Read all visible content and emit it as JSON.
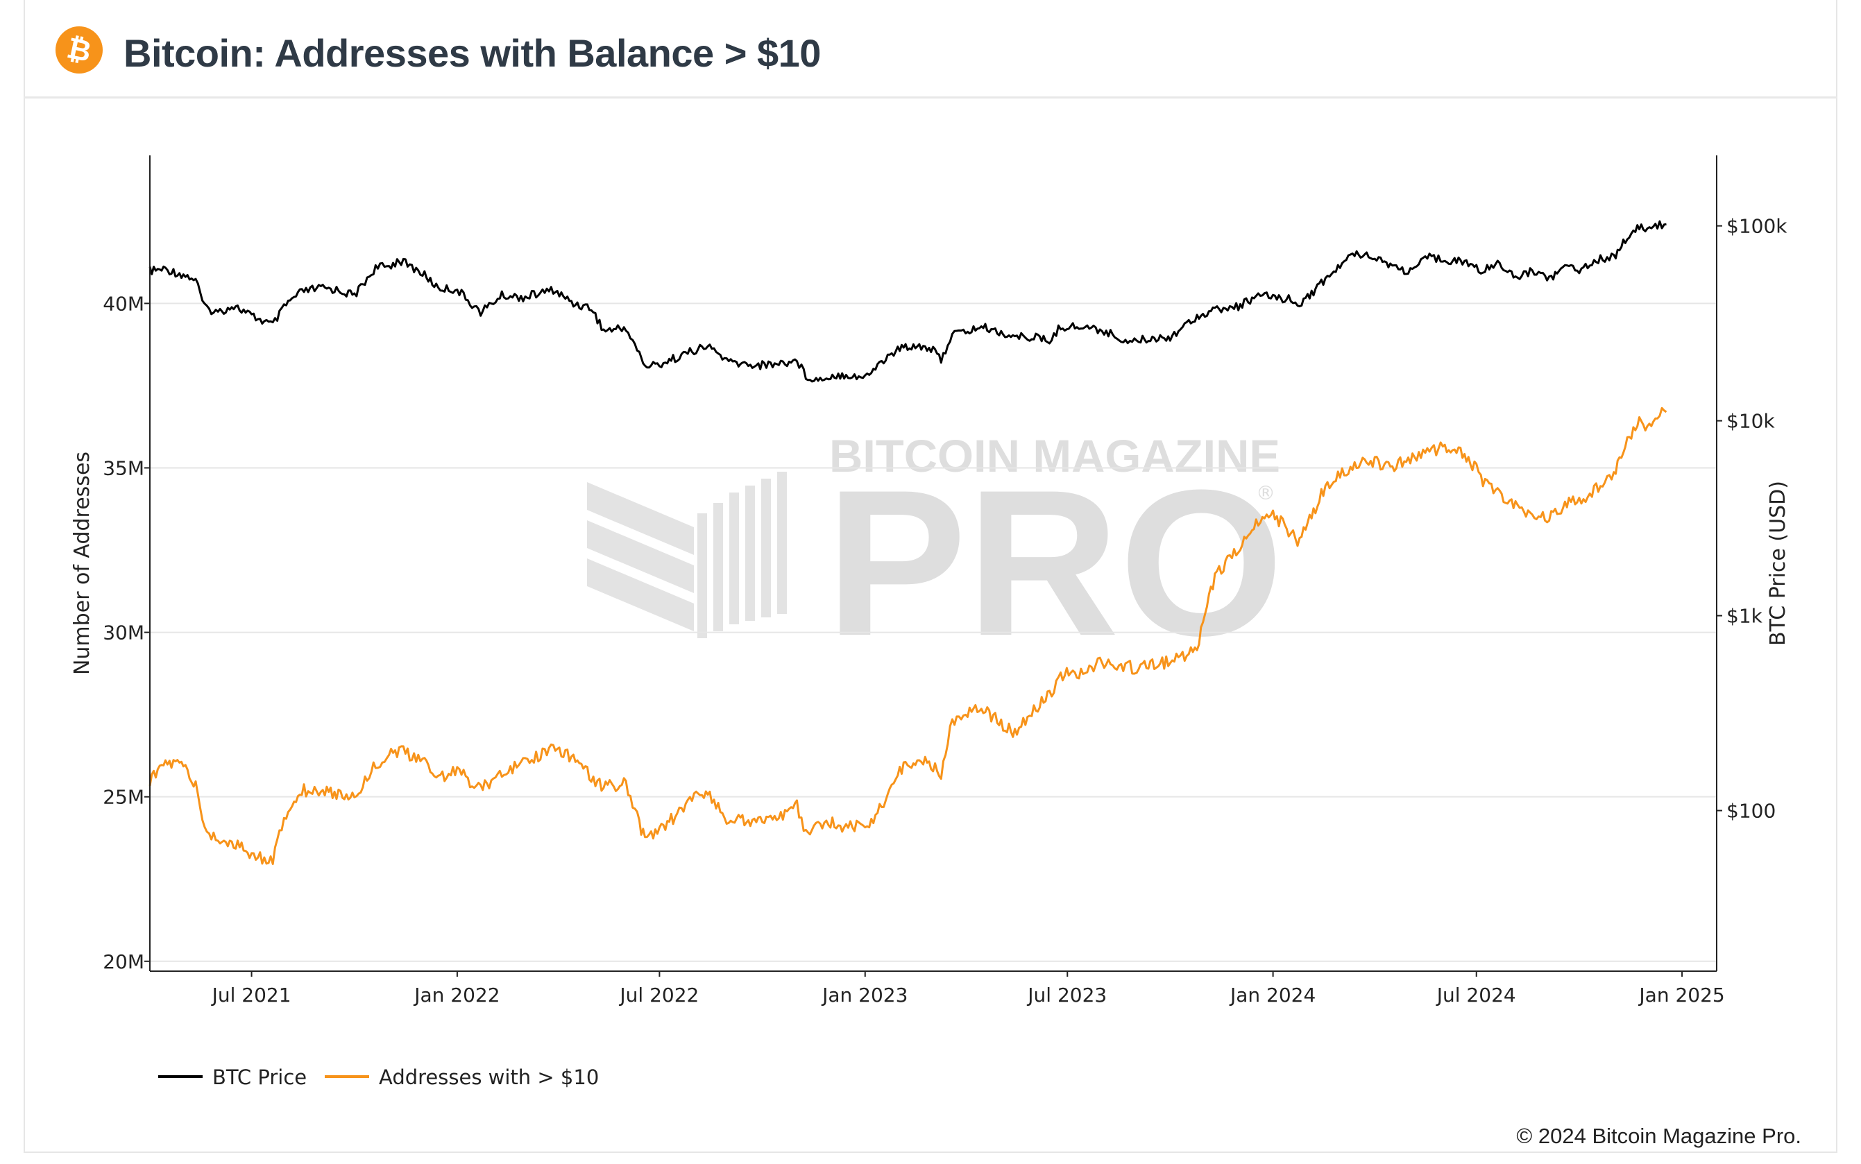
{
  "header": {
    "title": "Bitcoin: Addresses with Balance > $10",
    "logo_icon": "bitcoin-icon"
  },
  "footer": {
    "copyright": "© 2024 Bitcoin Magazine Pro."
  },
  "watermark": {
    "top_text": "BITCOIN MAGAZINE",
    "main_text": "PRO",
    "mark": "®"
  },
  "colors": {
    "btc_price": "#000000",
    "addresses": "#f7931a",
    "grid": "#e6e6e6",
    "watermark": "#dcdcdc",
    "brand": "#f7931a"
  },
  "chart_data": {
    "type": "line",
    "title": "Bitcoin: Addresses with Balance > $10",
    "xlabel": "",
    "ylabel": "Number of Addresses",
    "y2label": "BTC Price (USD)",
    "x_ticks": [
      "Jul 2021",
      "Jan 2022",
      "Jul 2022",
      "Jan 2023",
      "Jul 2023",
      "Jan 2024",
      "Jul 2024",
      "Jan 2025"
    ],
    "x_range": [
      "2021-04-01",
      "2025-02-01"
    ],
    "ylim": [
      19700000,
      44500000
    ],
    "y_ticks": [
      {
        "value": 20000000,
        "label": "20M"
      },
      {
        "value": 25000000,
        "label": "25M"
      },
      {
        "value": 30000000,
        "label": "30M"
      },
      {
        "value": 35000000,
        "label": "35M"
      },
      {
        "value": 40000000,
        "label": "40M"
      }
    ],
    "y2_scale": "log",
    "y2lim": [
      15,
      230000
    ],
    "y2_ticks": [
      {
        "value": 100,
        "label": "$100"
      },
      {
        "value": 1000,
        "label": "$1k"
      },
      {
        "value": 10000,
        "label": "$10k"
      },
      {
        "value": 100000,
        "label": "$100k"
      }
    ],
    "grid": true,
    "legend_position": "bottom-left",
    "series": [
      {
        "name": "BTC Price",
        "axis": "right",
        "color": "#000000",
        "x": [
          "2021-04-01",
          "2021-04-15",
          "2021-05-01",
          "2021-05-12",
          "2021-05-20",
          "2021-06-01",
          "2021-06-15",
          "2021-07-01",
          "2021-07-20",
          "2021-08-01",
          "2021-08-15",
          "2021-09-01",
          "2021-09-15",
          "2021-10-01",
          "2021-10-20",
          "2021-11-01",
          "2021-11-10",
          "2021-12-01",
          "2021-12-15",
          "2022-01-01",
          "2022-01-22",
          "2022-02-10",
          "2022-03-01",
          "2022-03-28",
          "2022-04-15",
          "2022-05-01",
          "2022-05-12",
          "2022-06-01",
          "2022-06-13",
          "2022-06-18",
          "2022-07-01",
          "2022-07-15",
          "2022-08-01",
          "2022-08-15",
          "2022-09-01",
          "2022-09-15",
          "2022-10-01",
          "2022-10-25",
          "2022-11-01",
          "2022-11-09",
          "2022-11-20",
          "2022-12-01",
          "2022-12-15",
          "2023-01-01",
          "2023-01-14",
          "2023-02-01",
          "2023-02-15",
          "2023-03-01",
          "2023-03-10",
          "2023-03-20",
          "2023-04-01",
          "2023-04-15",
          "2023-05-01",
          "2023-05-15",
          "2023-06-01",
          "2023-06-15",
          "2023-06-25",
          "2023-07-15",
          "2023-08-01",
          "2023-08-20",
          "2023-09-01",
          "2023-09-15",
          "2023-10-01",
          "2023-10-25",
          "2023-11-10",
          "2023-12-01",
          "2023-12-15",
          "2024-01-01",
          "2024-01-15",
          "2024-01-23",
          "2024-02-01",
          "2024-02-15",
          "2024-03-01",
          "2024-03-14",
          "2024-04-01",
          "2024-04-15",
          "2024-05-01",
          "2024-05-20",
          "2024-06-01",
          "2024-06-15",
          "2024-07-01",
          "2024-07-05",
          "2024-07-20",
          "2024-08-05",
          "2024-08-20",
          "2024-09-06",
          "2024-09-20",
          "2024-10-01",
          "2024-10-20",
          "2024-11-01",
          "2024-11-06",
          "2024-11-13",
          "2024-11-22",
          "2024-12-01",
          "2024-12-10",
          "2024-12-18"
        ],
        "values": [
          58800,
          60000,
          56000,
          53000,
          38000,
          36000,
          39000,
          34500,
          31000,
          39500,
          46000,
          48000,
          47000,
          44000,
          61000,
          62000,
          67000,
          57000,
          48000,
          47000,
          36000,
          44000,
          43000,
          47000,
          40000,
          38000,
          29000,
          30000,
          22000,
          19000,
          19500,
          21000,
          23000,
          24000,
          20000,
          19500,
          19300,
          20000,
          20500,
          17000,
          16200,
          17000,
          17300,
          16600,
          19800,
          23500,
          24500,
          23500,
          20500,
          28000,
          28500,
          30400,
          28500,
          26900,
          27000,
          25500,
          30500,
          30300,
          29200,
          26000,
          25800,
          26500,
          27000,
          34500,
          37000,
          38500,
          43000,
          43500,
          42000,
          39500,
          43000,
          52000,
          62000,
          73000,
          70000,
          63000,
          58000,
          69000,
          67700,
          66000,
          62000,
          57000,
          66000,
          54000,
          59000,
          54000,
          63000,
          60000,
          68000,
          69500,
          75000,
          88000,
          98000,
          96000,
          101000,
          102000
        ]
      },
      {
        "name": "Addresses with > $10",
        "axis": "left",
        "color": "#f7931a",
        "x": [
          "2021-04-01",
          "2021-04-15",
          "2021-05-01",
          "2021-05-12",
          "2021-05-20",
          "2021-06-01",
          "2021-06-15",
          "2021-07-01",
          "2021-07-20",
          "2021-08-01",
          "2021-08-15",
          "2021-09-01",
          "2021-09-15",
          "2021-10-01",
          "2021-10-20",
          "2021-11-01",
          "2021-11-10",
          "2021-12-01",
          "2021-12-15",
          "2022-01-01",
          "2022-01-22",
          "2022-02-10",
          "2022-03-01",
          "2022-03-28",
          "2022-04-15",
          "2022-05-01",
          "2022-05-12",
          "2022-06-01",
          "2022-06-13",
          "2022-06-18",
          "2022-07-01",
          "2022-07-15",
          "2022-08-01",
          "2022-08-15",
          "2022-09-01",
          "2022-09-15",
          "2022-10-01",
          "2022-10-25",
          "2022-11-01",
          "2022-11-09",
          "2022-11-20",
          "2022-12-01",
          "2022-12-15",
          "2023-01-01",
          "2023-01-14",
          "2023-02-01",
          "2023-02-15",
          "2023-03-01",
          "2023-03-10",
          "2023-03-20",
          "2023-04-01",
          "2023-04-15",
          "2023-05-01",
          "2023-05-15",
          "2023-06-01",
          "2023-06-15",
          "2023-06-25",
          "2023-07-15",
          "2023-08-01",
          "2023-08-20",
          "2023-09-01",
          "2023-09-15",
          "2023-10-01",
          "2023-10-25",
          "2023-11-10",
          "2023-12-01",
          "2023-12-15",
          "2024-01-01",
          "2024-01-15",
          "2024-01-23",
          "2024-02-01",
          "2024-02-15",
          "2024-03-01",
          "2024-03-14",
          "2024-04-01",
          "2024-04-15",
          "2024-05-01",
          "2024-05-20",
          "2024-06-01",
          "2024-06-15",
          "2024-07-01",
          "2024-07-05",
          "2024-07-20",
          "2024-08-05",
          "2024-08-20",
          "2024-09-06",
          "2024-09-20",
          "2024-10-01",
          "2024-10-20",
          "2024-11-01",
          "2024-11-06",
          "2024-11-13",
          "2024-11-22",
          "2024-12-01",
          "2024-12-10",
          "2024-12-18"
        ],
        "values": [
          25500000,
          26000000,
          26000000,
          25300000,
          24000000,
          23700000,
          23600000,
          23200000,
          23100000,
          24500000,
          25200000,
          25200000,
          25100000,
          25000000,
          26000000,
          26300000,
          26400000,
          26100000,
          25600000,
          25800000,
          25200000,
          25800000,
          26000000,
          26500000,
          26200000,
          25600000,
          25300000,
          25400000,
          24200000,
          23700000,
          24000000,
          24400000,
          25000000,
          25100000,
          24200000,
          24300000,
          24300000,
          24500000,
          24700000,
          23900000,
          24100000,
          24200000,
          24100000,
          24100000,
          24600000,
          25800000,
          26100000,
          26000000,
          25700000,
          27300000,
          27600000,
          27700000,
          27300000,
          26900000,
          27600000,
          28100000,
          28700000,
          28800000,
          29100000,
          29000000,
          28900000,
          29000000,
          29100000,
          29500000,
          31700000,
          32500000,
          33200000,
          33600000,
          33100000,
          32800000,
          33300000,
          34300000,
          34800000,
          35100000,
          35200000,
          35000000,
          35300000,
          35500000,
          35600000,
          35500000,
          35000000,
          34600000,
          34200000,
          33800000,
          33600000,
          33500000,
          33900000,
          34000000,
          34500000,
          34900000,
          35200000,
          35800000,
          36400000,
          36300000,
          36600000,
          36700000
        ]
      }
    ]
  },
  "legend": {
    "items": [
      {
        "label": "BTC Price",
        "color": "#000000"
      },
      {
        "label": "Addresses with > $10",
        "color": "#f7931a"
      }
    ]
  }
}
